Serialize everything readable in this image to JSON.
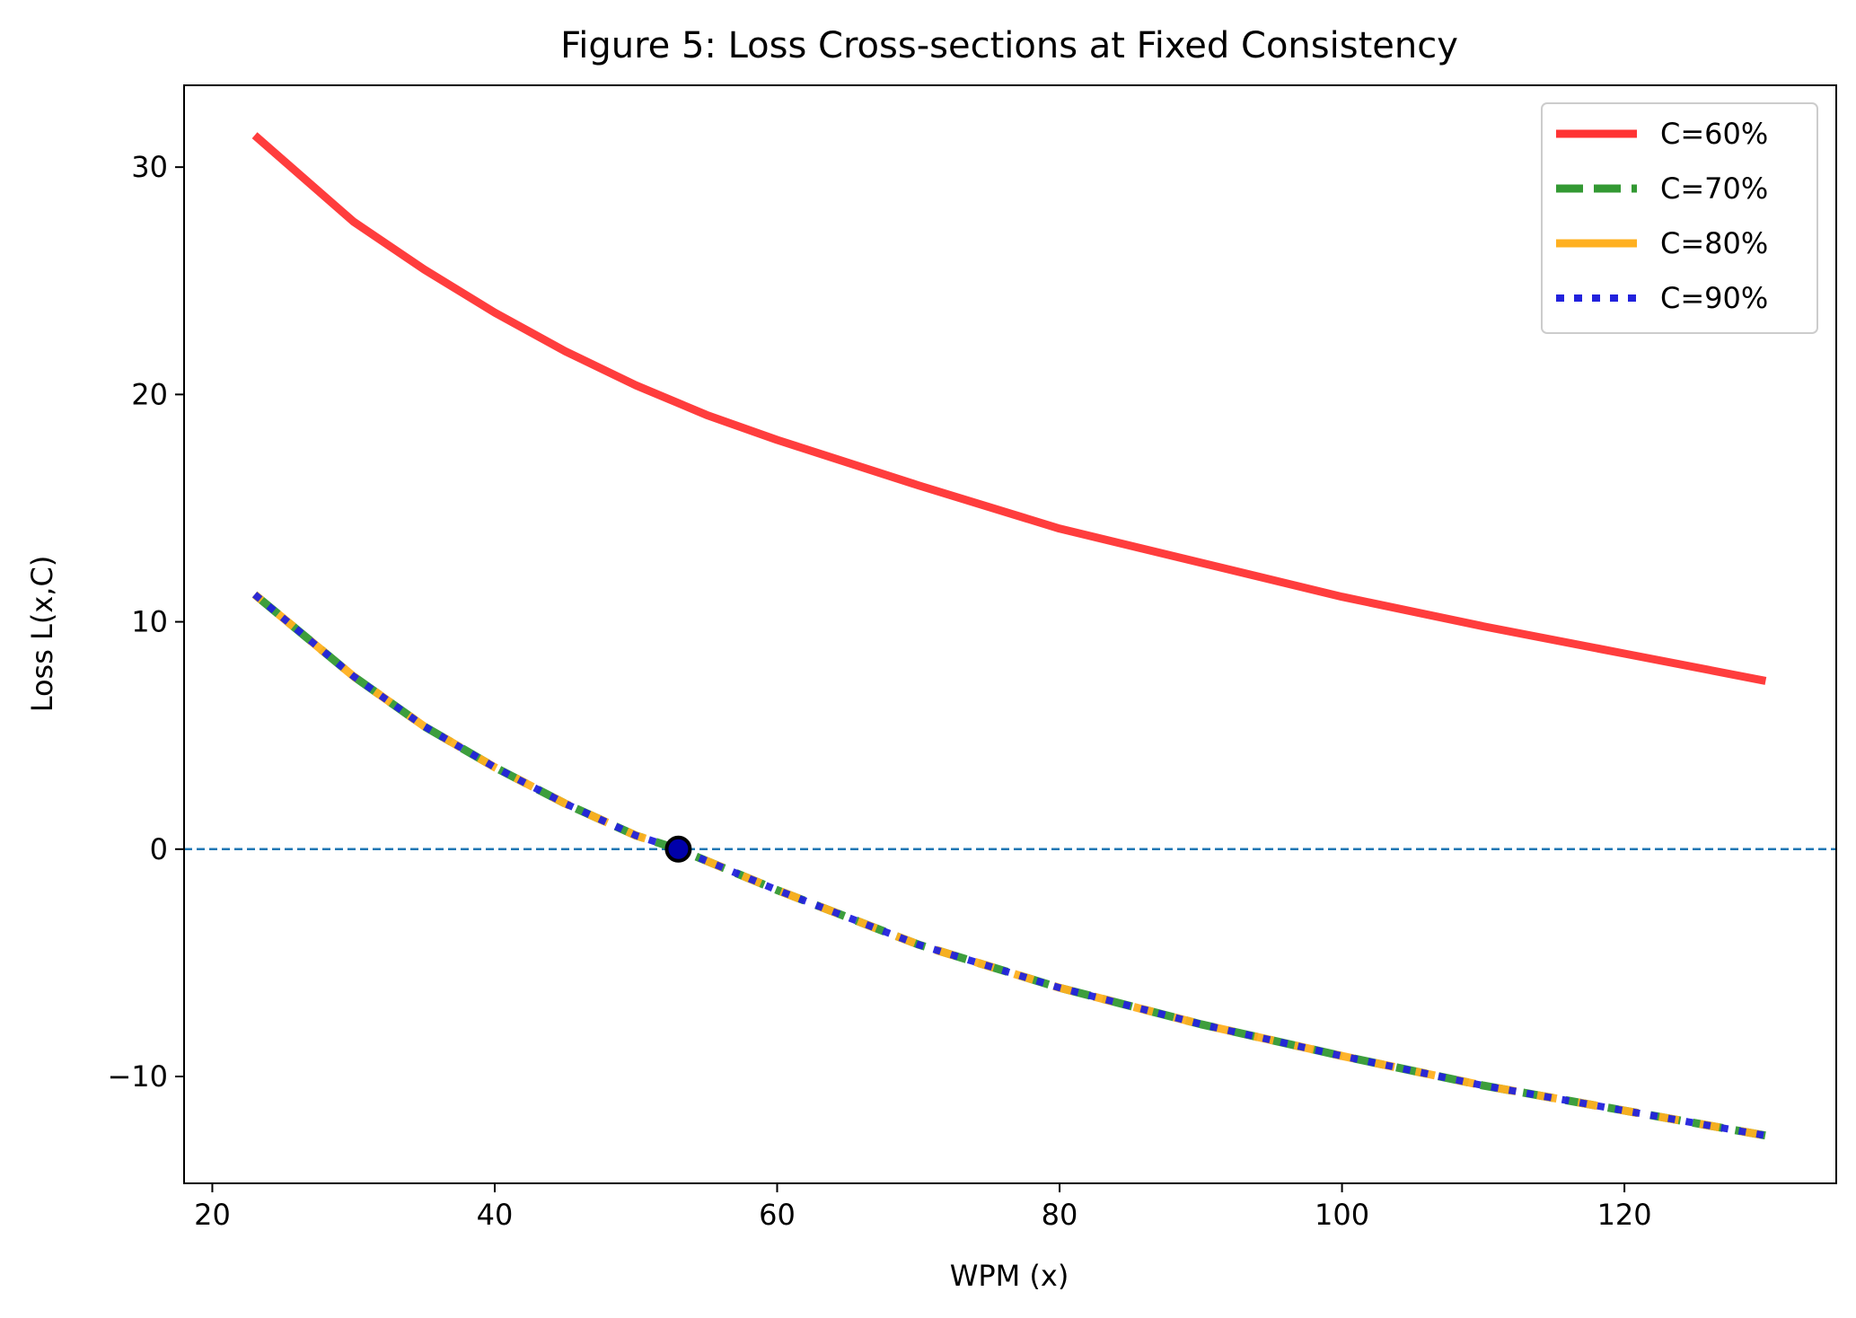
{
  "chart_data": {
    "type": "line",
    "title": "Figure 5: Loss Cross-sections at Fixed Consistency",
    "xlabel": "WPM (x)",
    "ylabel": "Loss  L(x,C)",
    "xlim": [
      18,
      135
    ],
    "ylim": [
      -14.7,
      33.6
    ],
    "xticks": [
      20,
      40,
      60,
      80,
      100,
      120
    ],
    "yticks": [
      -10,
      0,
      10,
      20,
      30
    ],
    "ytick_labels": [
      "−10",
      "0",
      "10",
      "20",
      "30"
    ],
    "grid": false,
    "legend_position": "top-right",
    "reference_line": {
      "y": 0,
      "style": "dashed",
      "color": "#1f77b4"
    },
    "marker": {
      "x": 53,
      "y": 0,
      "color": "#0000aa"
    },
    "series": [
      {
        "name": "C=60%",
        "color": "#ff3333",
        "style": "solid",
        "x": [
          23,
          30,
          35,
          40,
          45,
          50,
          55,
          60,
          70,
          80,
          90,
          100,
          110,
          120,
          130
        ],
        "y": [
          31.4,
          27.6,
          25.5,
          23.6,
          21.9,
          20.4,
          19.1,
          18.0,
          16.0,
          14.1,
          12.6,
          11.1,
          9.8,
          8.6,
          7.4
        ]
      },
      {
        "name": "C=70%",
        "color": "#339933",
        "style": "dashed",
        "x": [
          23,
          30,
          35,
          40,
          45,
          50,
          53,
          60,
          70,
          80,
          90,
          100,
          110,
          120,
          130
        ],
        "y": [
          11.2,
          7.6,
          5.4,
          3.6,
          2.0,
          0.6,
          0.0,
          -1.8,
          -4.2,
          -6.1,
          -7.7,
          -9.1,
          -10.4,
          -11.5,
          -12.6
        ]
      },
      {
        "name": "C=80%",
        "color": "#ffb020",
        "style": "solid",
        "x": [
          23,
          30,
          35,
          40,
          45,
          50,
          53,
          60,
          70,
          80,
          90,
          100,
          110,
          120,
          130
        ],
        "y": [
          11.2,
          7.6,
          5.4,
          3.6,
          2.0,
          0.6,
          0.0,
          -1.8,
          -4.2,
          -6.1,
          -7.7,
          -9.1,
          -10.4,
          -11.5,
          -12.6
        ]
      },
      {
        "name": "C=90%",
        "color": "#2222dd",
        "style": "dotted",
        "x": [
          23,
          30,
          35,
          40,
          45,
          50,
          53,
          60,
          70,
          80,
          90,
          100,
          110,
          120,
          130
        ],
        "y": [
          11.2,
          7.6,
          5.4,
          3.6,
          2.0,
          0.6,
          0.0,
          -1.8,
          -4.2,
          -6.1,
          -7.7,
          -9.1,
          -10.4,
          -11.5,
          -12.6
        ]
      }
    ]
  }
}
